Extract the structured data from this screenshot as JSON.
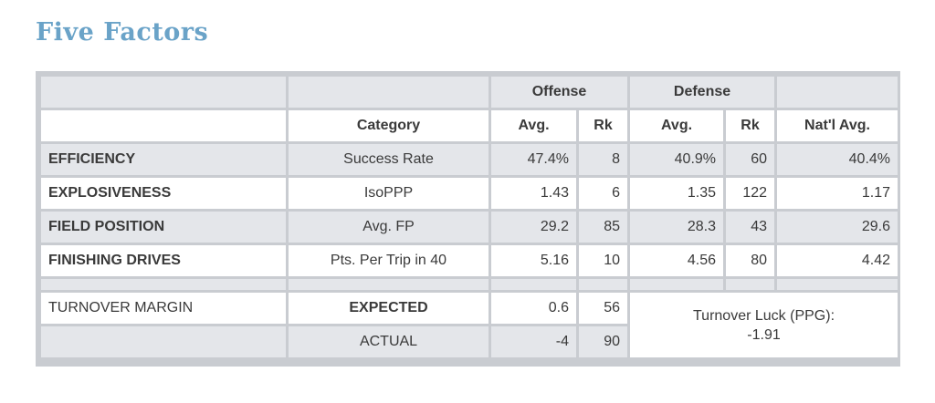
{
  "title": "Five Factors",
  "headers": {
    "offense": "Offense",
    "defense": "Defense",
    "category": "Category",
    "avg": "Avg.",
    "rk": "Rk",
    "natl_avg": "Nat'l Avg."
  },
  "rows": [
    {
      "label": "EFFICIENCY",
      "category": "Success Rate",
      "off_avg": "47.4%",
      "off_rk": "8",
      "def_avg": "40.9%",
      "def_rk": "60",
      "natl": "40.4%"
    },
    {
      "label": "EXPLOSIVENESS",
      "category": "IsoPPP",
      "off_avg": "1.43",
      "off_rk": "6",
      "def_avg": "1.35",
      "def_rk": "122",
      "natl": "1.17"
    },
    {
      "label": "FIELD POSITION",
      "category": "Avg. FP",
      "off_avg": "29.2",
      "off_rk": "85",
      "def_avg": "28.3",
      "def_rk": "43",
      "natl": "29.6"
    },
    {
      "label": "FINISHING DRIVES",
      "category": "Pts. Per Trip in 40",
      "off_avg": "5.16",
      "off_rk": "10",
      "def_avg": "4.56",
      "def_rk": "80",
      "natl": "4.42"
    }
  ],
  "turnover": {
    "label": "TURNOVER MARGIN",
    "expected_label": "EXPECTED",
    "expected_value": "0.6",
    "expected_rk": "56",
    "actual_label": "ACTUAL",
    "actual_value": "-4",
    "actual_rk": "90",
    "luck_label": "Turnover Luck (PPG):",
    "luck_value": "-1.91"
  }
}
